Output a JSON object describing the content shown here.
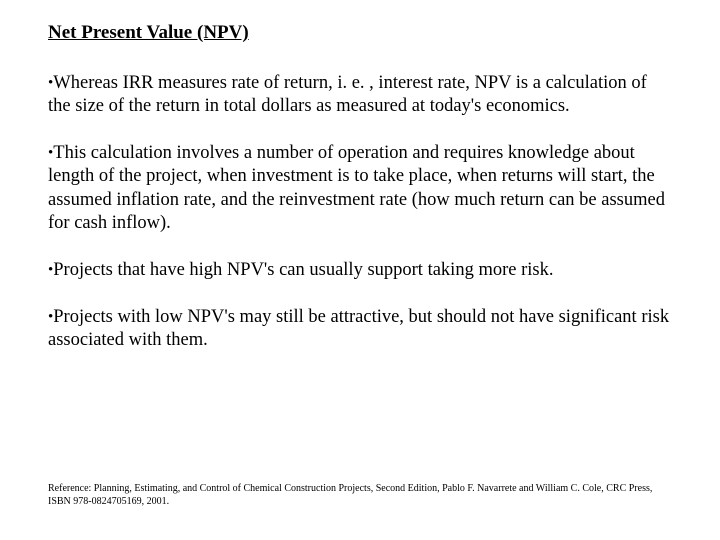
{
  "title": "Net Present Value (NPV)",
  "bullets": [
    "Whereas IRR measures rate of return, i. e. , interest rate, NPV is a calculation of the size of the return in total dollars as measured at today's economics.",
    "This calculation involves a number of operation and requires knowledge about length of the project, when investment is to take place, when returns will start, the assumed inflation rate, and the reinvestment rate (how much return can be assumed for cash inflow).",
    "Projects that have high NPV's can usually support taking more risk.",
    "Projects with low NPV's may still be attractive, but should not have significant risk associated with them."
  ],
  "reference": "Reference: Planning, Estimating, and Control of Chemical Construction Projects, Second Edition, Pablo F. Navarrete and William C. Cole, CRC Press, ISBN 978-0824705169, 2001.",
  "style": {
    "background_color": "#ffffff",
    "text_color": "#000000",
    "font_family": "Times New Roman",
    "title_fontsize": 19,
    "body_fontsize": 18.5,
    "reference_fontsize": 10,
    "bullet_char": "•"
  }
}
